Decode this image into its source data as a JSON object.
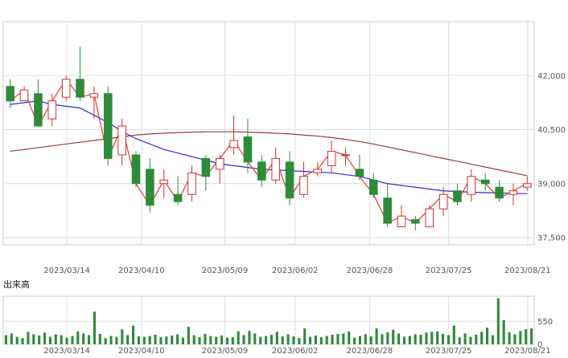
{
  "chart_data": [
    {
      "type": "candlestick",
      "panel": "price",
      "y_ticks": [
        "42,000",
        "40,500",
        "39,000",
        "37,500"
      ],
      "y_tick_values": [
        42000,
        40500,
        39000,
        37500
      ],
      "ylim": [
        37300,
        43500
      ],
      "x_ticks": [
        "2023/03/14",
        "2023/04/10",
        "2023/05/09",
        "2023/06/02",
        "2023/06/28",
        "2023/07/25",
        "2023/08/21"
      ],
      "x_tick_positions": [
        14,
        31,
        50,
        66,
        83,
        101,
        119
      ],
      "x_count": 121,
      "colors": {
        "up": "#d32f2f",
        "down": "#2e8b3a",
        "ma_short": "#e53935",
        "ma_mid": "#2b2be0",
        "ma_long": "#9c3b3b",
        "grid": "#dddddd",
        "frame": "#cccccc"
      },
      "candles": [
        [
          41700,
          41900,
          41100,
          41300
        ],
        [
          41300,
          41700,
          41300,
          41600
        ],
        [
          41500,
          41900,
          40600,
          40600
        ],
        [
          40800,
          41500,
          40600,
          41300
        ],
        [
          41400,
          42000,
          41300,
          41900
        ],
        [
          41900,
          42800,
          41300,
          41400
        ],
        [
          41400,
          41700,
          40800,
          41500
        ],
        [
          41500,
          41700,
          39500,
          39700
        ],
        [
          39800,
          40800,
          39500,
          40600
        ],
        [
          39800,
          39900,
          38900,
          39000
        ],
        [
          39400,
          39700,
          38200,
          38400
        ],
        [
          39000,
          39400,
          38600,
          39100
        ],
        [
          38700,
          39200,
          38400,
          38500
        ],
        [
          38700,
          39500,
          38500,
          39300
        ],
        [
          39700,
          39800,
          38800,
          39200
        ],
        [
          39400,
          39800,
          39000,
          39700
        ],
        [
          40000,
          40900,
          39800,
          40200
        ],
        [
          40300,
          40800,
          39300,
          39600
        ],
        [
          39600,
          39800,
          38900,
          39100
        ],
        [
          39100,
          40000,
          39000,
          39700
        ],
        [
          39600,
          39900,
          38400,
          38600
        ],
        [
          38700,
          39600,
          38600,
          39200
        ],
        [
          39300,
          39600,
          39200,
          39400
        ],
        [
          39500,
          40200,
          39300,
          39900
        ],
        [
          39800,
          40000,
          39500,
          39800
        ],
        [
          39400,
          39800,
          39100,
          39200
        ],
        [
          39100,
          39300,
          38600,
          38700
        ],
        [
          38600,
          39000,
          37800,
          37900
        ],
        [
          37800,
          38400,
          37800,
          38100
        ],
        [
          38000,
          38100,
          37700,
          37900
        ],
        [
          37800,
          38400,
          37800,
          38300
        ],
        [
          38300,
          38900,
          38100,
          38700
        ],
        [
          38800,
          39000,
          38400,
          38500
        ],
        [
          38700,
          39400,
          38500,
          39200
        ],
        [
          39100,
          39300,
          38800,
          39000
        ],
        [
          38900,
          39100,
          38500,
          38600
        ],
        [
          38700,
          39000,
          38400,
          38800
        ],
        [
          38900,
          39200,
          38800,
          39000
        ]
      ],
      "series": [
        {
          "name": "",
          "values": [
            41200,
            41250,
            41300,
            41200,
            41150,
            41100,
            40900,
            40700,
            40450,
            40250,
            40100,
            39950,
            39850,
            39750,
            39650,
            39550,
            39500,
            39450,
            39400,
            39380,
            39360,
            39340,
            39320,
            39300,
            39250,
            39200,
            39100,
            39000,
            38950,
            38900,
            38850,
            38800,
            38780,
            38760,
            38750,
            38740,
            38730,
            38720
          ]
        },
        {
          "name": "",
          "values": [
            39900,
            39950,
            40000,
            40050,
            40100,
            40150,
            40200,
            40250,
            40300,
            40350,
            40380,
            40400,
            40420,
            40430,
            40440,
            40440,
            40440,
            40430,
            40420,
            40400,
            40380,
            40350,
            40320,
            40280,
            40230,
            40170,
            40100,
            40020,
            39940,
            39860,
            39780,
            39700,
            39620,
            39540,
            39460,
            39380,
            39300,
            39220
          ]
        }
      ]
    },
    {
      "type": "bar",
      "panel": "volume",
      "title": "出来高",
      "y_ticks": [
        "550",
        "0"
      ],
      "y_tick_values": [
        550,
        0
      ],
      "ylim": [
        0,
        1150
      ],
      "values": [
        220,
        260,
        180,
        150,
        300,
        240,
        210,
        280,
        180,
        240,
        220,
        160,
        200,
        310,
        260,
        220,
        780,
        250,
        150,
        200,
        180,
        360,
        220,
        450,
        190,
        180,
        200,
        230,
        170,
        190,
        210,
        240,
        160,
        420,
        220,
        170,
        250,
        200,
        180,
        210,
        160,
        170,
        310,
        220,
        320,
        260,
        180,
        200,
        230,
        300,
        190,
        240,
        190,
        150,
        380,
        180,
        210,
        170,
        200,
        230,
        250,
        260,
        310,
        160,
        200,
        240,
        190,
        380,
        240,
        290,
        350,
        260,
        180,
        200,
        240,
        230,
        280,
        300,
        310,
        250,
        220,
        450,
        170,
        260,
        180,
        230,
        300,
        400,
        220,
        1100,
        580,
        290,
        240,
        320,
        360,
        380
      ]
    }
  ]
}
